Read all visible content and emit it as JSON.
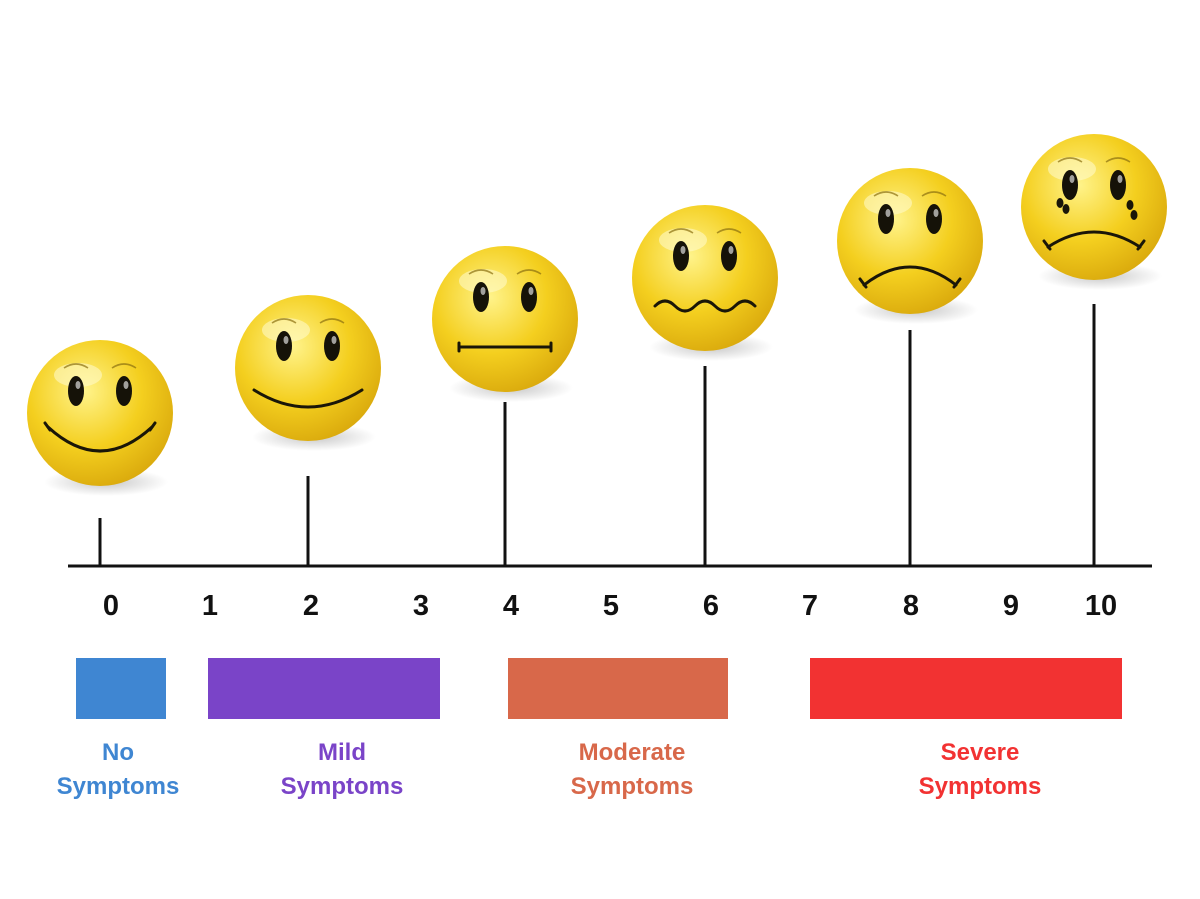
{
  "scale": {
    "ticks": [
      "0",
      "1",
      "2",
      "3",
      "4",
      "5",
      "6",
      "7",
      "8",
      "9",
      "10"
    ],
    "faces": [
      {
        "value": 0,
        "expression": "big-smile"
      },
      {
        "value": 2,
        "expression": "smile"
      },
      {
        "value": 4,
        "expression": "neutral"
      },
      {
        "value": 6,
        "expression": "wavy-uneasy"
      },
      {
        "value": 8,
        "expression": "frown"
      },
      {
        "value": 10,
        "expression": "crying"
      }
    ],
    "face_color": "#f4cf1f",
    "categories": [
      {
        "line1": "No",
        "line2": "Symptoms",
        "color": "#3f86d2"
      },
      {
        "line1": "Mild",
        "line2": "Symptoms",
        "color": "#7a44c8"
      },
      {
        "line1": "Moderate",
        "line2": "Symptoms",
        "color": "#d8684a"
      },
      {
        "line1": "Severe",
        "line2": "Symptoms",
        "color": "#f23232"
      }
    ]
  }
}
